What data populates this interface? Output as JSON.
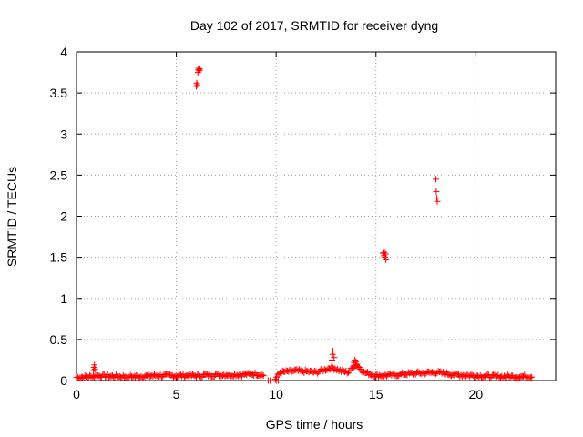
{
  "chart_data": {
    "type": "scatter",
    "title": "Day 102 of 2017, SRMTID for receiver dyng",
    "xlabel": "GPS time / hours",
    "ylabel": "SRMTID / TECUs",
    "xlim": [
      0,
      24
    ],
    "ylim": [
      0,
      4
    ],
    "x_ticks": [
      0,
      5,
      10,
      15,
      20
    ],
    "x_tick_labels": [
      "0",
      "5",
      "10",
      "15",
      "20"
    ],
    "y_ticks": [
      0,
      0.5,
      1,
      1.5,
      2,
      2.5,
      3,
      3.5,
      4
    ],
    "y_tick_labels": [
      "0",
      "0.5",
      "1",
      "1.5",
      "2",
      "2.5",
      "3",
      "3.5",
      "4"
    ],
    "grid": true,
    "marker": "plus",
    "series": [
      {
        "name": "SRMTID",
        "color": "#ff0000",
        "baseline": {
          "x_start": 0.0,
          "x_end": 22.8,
          "gap": [
            9.4,
            9.9
          ],
          "profile": [
            [
              0.0,
              0.04
            ],
            [
              0.8,
              0.05
            ],
            [
              1.0,
              0.06
            ],
            [
              2.0,
              0.05
            ],
            [
              3.0,
              0.05
            ],
            [
              4.0,
              0.06
            ],
            [
              5.0,
              0.06
            ],
            [
              6.0,
              0.06
            ],
            [
              7.0,
              0.07
            ],
            [
              8.0,
              0.07
            ],
            [
              9.0,
              0.08
            ],
            [
              9.4,
              0.06
            ],
            [
              9.9,
              0.0
            ],
            [
              10.2,
              0.1
            ],
            [
              11.0,
              0.12
            ],
            [
              12.0,
              0.1
            ],
            [
              12.8,
              0.16
            ],
            [
              13.2,
              0.12
            ],
            [
              13.6,
              0.1
            ],
            [
              14.0,
              0.2
            ],
            [
              14.4,
              0.1
            ],
            [
              15.0,
              0.06
            ],
            [
              16.0,
              0.07
            ],
            [
              17.0,
              0.09
            ],
            [
              18.0,
              0.1
            ],
            [
              19.0,
              0.07
            ],
            [
              20.0,
              0.06
            ],
            [
              21.0,
              0.05
            ],
            [
              22.0,
              0.05
            ],
            [
              22.8,
              0.05
            ]
          ]
        },
        "points": [
          [
            0.85,
            0.12
          ],
          [
            0.88,
            0.16
          ],
          [
            0.9,
            0.19
          ],
          [
            0.92,
            0.14
          ],
          [
            6.0,
            3.58
          ],
          [
            6.02,
            3.62
          ],
          [
            6.05,
            3.6
          ],
          [
            6.08,
            3.75
          ],
          [
            6.1,
            3.78
          ],
          [
            6.12,
            3.8
          ],
          [
            6.15,
            3.77
          ],
          [
            6.18,
            3.79
          ],
          [
            9.6,
            0.0
          ],
          [
            9.7,
            0.0
          ],
          [
            10.0,
            0.0
          ],
          [
            10.1,
            0.0
          ],
          [
            12.8,
            0.25
          ],
          [
            12.83,
            0.32
          ],
          [
            12.85,
            0.36
          ],
          [
            12.9,
            0.28
          ],
          [
            13.9,
            0.22
          ],
          [
            13.95,
            0.25
          ],
          [
            14.0,
            0.23
          ],
          [
            14.05,
            0.2
          ],
          [
            15.35,
            1.55
          ],
          [
            15.4,
            1.52
          ],
          [
            15.45,
            1.5
          ],
          [
            15.48,
            1.54
          ],
          [
            15.5,
            1.47
          ],
          [
            15.42,
            1.56
          ],
          [
            18.0,
            2.45
          ],
          [
            18.02,
            2.3
          ],
          [
            18.05,
            2.22
          ],
          [
            18.07,
            2.18
          ]
        ]
      }
    ]
  }
}
